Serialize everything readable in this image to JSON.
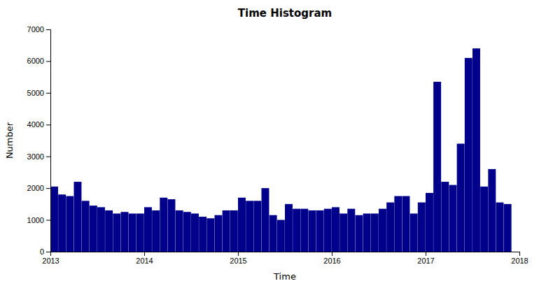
{
  "chart_data": {
    "type": "histogram",
    "title": "Time Histogram",
    "xlabel": "Time",
    "ylabel": "Number",
    "color": "#00008B",
    "bins": [
      2013,
      2013.0833,
      2013.1667,
      2013.25,
      2013.3333,
      2013.4167,
      2013.5,
      2013.5833,
      2013.6667,
      2013.75,
      2013.8333,
      2013.9167,
      2014,
      2014.0833,
      2014.1667,
      2014.25,
      2014.3333,
      2014.4167,
      2014.5,
      2014.5833,
      2014.6667,
      2014.75,
      2014.8333,
      2014.9167,
      2015,
      2015.0833,
      2015.1667,
      2015.25,
      2015.3333,
      2015.4167,
      2015.5,
      2015.5833,
      2015.6667,
      2015.75,
      2015.8333,
      2015.9167,
      2016,
      2016.0833,
      2016.1667,
      2016.25,
      2016.3333,
      2016.4167,
      2016.5,
      2016.5833,
      2016.6667,
      2016.75,
      2016.8333,
      2016.9167,
      2017,
      2017.0833,
      2017.1667,
      2017.25,
      2017.3333,
      2017.4167,
      2017.5,
      2017.5833,
      2017.6667,
      2017.75,
      2017.8333,
      2017.9167
    ],
    "values": [
      2050,
      1800,
      1750,
      2200,
      1600,
      1450,
      1400,
      1300,
      1200,
      1250,
      1200,
      1200,
      1400,
      1300,
      1700,
      1650,
      1300,
      1250,
      1200,
      1100,
      1050,
      1150,
      1300,
      1300,
      1700,
      1600,
      1600,
      2000,
      1150,
      1000,
      1500,
      1350,
      1350,
      1300,
      1300,
      1350,
      1400,
      1200,
      1350,
      1150,
      1200,
      1200,
      1350,
      1550,
      1750,
      1750,
      1200,
      1550,
      1850,
      5350,
      2200,
      2100,
      3400,
      6100,
      6400,
      2050,
      2600,
      1550,
      1500
    ],
    "xlim": [
      2013.0,
      2018.0
    ],
    "xticks": [
      2013,
      2014,
      2015,
      2016,
      2017,
      2018
    ],
    "ylim": [
      0,
      7000
    ],
    "yticks": [
      0,
      1000,
      2000,
      3000,
      4000,
      5000,
      6000,
      7000
    ],
    "grid": false
  }
}
